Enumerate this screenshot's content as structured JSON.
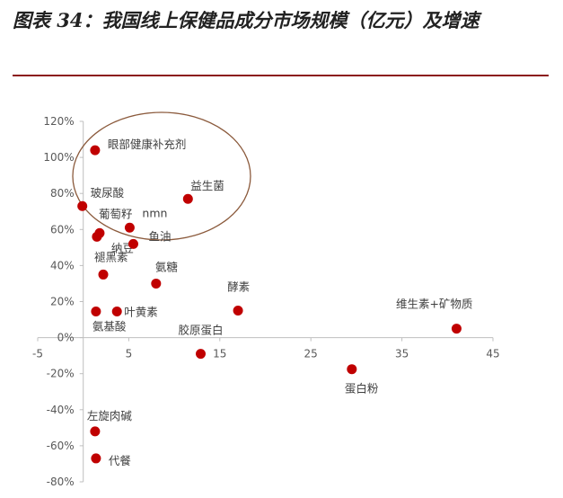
{
  "title": "图表 34：我国线上保健品成分市场规模（亿元）及增速",
  "chart_data": {
    "type": "scatter",
    "xlim": [
      -5,
      45
    ],
    "ylim": [
      -0.8,
      1.2
    ],
    "x_ticks": [
      "-5",
      "5",
      "15",
      "25",
      "35",
      "45"
    ],
    "y_ticks": [
      "120%",
      "100%",
      "80%",
      "60%",
      "40%",
      "20%",
      "0%",
      "-20%",
      "-40%",
      "-60%",
      "-80%"
    ],
    "grid": false,
    "colors": {
      "point": "#c00000",
      "axis": "#bfbfbf",
      "ellipse": "#8b5a3c",
      "title_rule": "#8b1a1a"
    },
    "points": [
      {
        "label": "眼部健康补充剂",
        "x": 1.3,
        "y": 1.04
      },
      {
        "label": "益生菌",
        "x": 11.5,
        "y": 0.77
      },
      {
        "label": "玻尿酸",
        "x": -0.1,
        "y": 0.73
      },
      {
        "label": "葡萄籽",
        "x": 1.8,
        "y": 0.58
      },
      {
        "label": "nmn",
        "x": 5.1,
        "y": 0.61
      },
      {
        "label": "纳豆",
        "x": 1.5,
        "y": 0.56
      },
      {
        "label": "鱼油",
        "x": 5.5,
        "y": 0.52
      },
      {
        "label": "褪黑素",
        "x": 2.2,
        "y": 0.35
      },
      {
        "label": "氨糖",
        "x": 8.0,
        "y": 0.3
      },
      {
        "label": "酵素",
        "x": 17.0,
        "y": 0.15
      },
      {
        "label": "氨基酸",
        "x": 1.4,
        "y": 0.145
      },
      {
        "label": "叶黄素",
        "x": 3.7,
        "y": 0.145
      },
      {
        "label": "维生素+矿物质",
        "x": 41.0,
        "y": 0.05
      },
      {
        "label": "胶原蛋白",
        "x": 12.9,
        "y": -0.09
      },
      {
        "label": "蛋白粉",
        "x": 29.5,
        "y": -0.175
      },
      {
        "label": "左旋肉碱",
        "x": 1.3,
        "y": -0.52
      },
      {
        "label": "代餐",
        "x": 1.4,
        "y": -0.67
      }
    ]
  }
}
